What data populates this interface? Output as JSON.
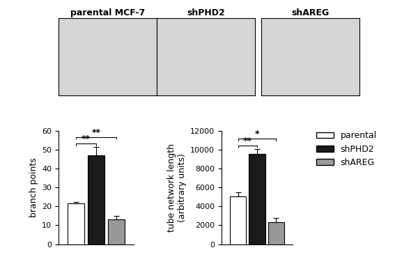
{
  "image_panels": [
    "parental MCF-7",
    "shPHD2",
    "shAREG"
  ],
  "chart_data": [
    {
      "type": "bar",
      "y_label": "branch points",
      "categories": [
        null
      ],
      "series": [
        {
          "name": "parental",
          "color": "#ffffff",
          "values": [
            21.5
          ],
          "error": [
            1
          ]
        },
        {
          "name": "shPHD2",
          "color": "#1a1a1a",
          "values": [
            47
          ],
          "error": [
            4.5
          ]
        },
        {
          "name": "shAREG",
          "color": "#999999",
          "values": [
            13
          ],
          "error": [
            2
          ]
        }
      ],
      "ylim": [
        0,
        60
      ],
      "yticks": [
        0,
        10,
        20,
        30,
        40,
        50,
        60
      ],
      "tick_labels": "y",
      "annotations": [
        {
          "between": [
            "parental",
            "shPHD2"
          ],
          "text": "**"
        },
        {
          "between": [
            "parental",
            "shAREG"
          ],
          "text": "**"
        }
      ]
    },
    {
      "type": "bar",
      "y_label": "tube network length\n(arbitrary units)",
      "categories": [
        null
      ],
      "series": [
        {
          "name": "parental",
          "color": "#ffffff",
          "values": [
            5100
          ],
          "error": [
            400
          ]
        },
        {
          "name": "shPHD2",
          "color": "#1a1a1a",
          "values": [
            9600
          ],
          "error": [
            500
          ]
        },
        {
          "name": "shAREG",
          "color": "#999999",
          "values": [
            2300
          ],
          "error": [
            500
          ]
        }
      ],
      "ylim": [
        0,
        12000
      ],
      "yticks": [
        0,
        2000,
        4000,
        6000,
        8000,
        10000,
        12000
      ],
      "tick_labels": "y",
      "legend": "upper right",
      "annotations": [
        {
          "between": [
            "parental",
            "shPHD2"
          ],
          "text": "**"
        },
        {
          "between": [
            "parental",
            "shAREG"
          ],
          "text": "*"
        }
      ]
    }
  ]
}
